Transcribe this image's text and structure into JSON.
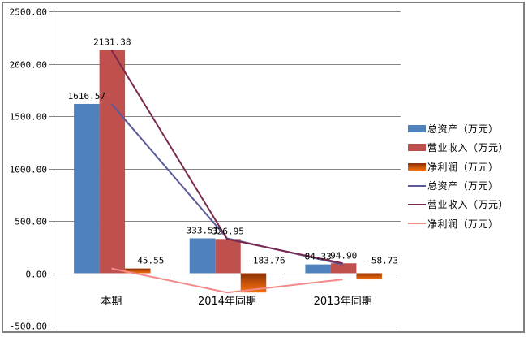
{
  "chart_data": {
    "type": "bar+line",
    "title": "",
    "xlabel": "",
    "ylabel": "",
    "ylim": [
      -500,
      2500
    ],
    "y_ticks": [
      "2500.00",
      "2000.00",
      "1500.00",
      "1000.00",
      "500.00",
      "0.00",
      "-500.00"
    ],
    "grid": true,
    "legend_position": "right",
    "categories": [
      "本期",
      "2014年同期",
      "2013年同期"
    ],
    "series": [
      {
        "name": "总资产（万元）",
        "kind": "bar",
        "color": "#4f81bd",
        "values": [
          1616.57,
          333.51,
          84.33
        ]
      },
      {
        "name": "营业收入（万元）",
        "kind": "bar",
        "color": "#c0504d",
        "values": [
          2131.38,
          326.95,
          94.9
        ]
      },
      {
        "name": "净利润（万元）",
        "kind": "bar",
        "color": "#e36c09",
        "values": [
          45.55,
          -183.76,
          -58.73
        ]
      },
      {
        "name": "总资产（万元）",
        "kind": "line",
        "color": "#5a5a9a",
        "values": [
          1616.57,
          333.51,
          84.33
        ]
      },
      {
        "name": "营业收入（万元）",
        "kind": "line",
        "color": "#7a2a4e",
        "values": [
          2131.38,
          326.95,
          94.9
        ]
      },
      {
        "name": "净利润（万元）",
        "kind": "line",
        "color": "#f28a8a",
        "values": [
          45.55,
          -183.76,
          -58.73
        ]
      }
    ],
    "data_labels": [
      [
        "1616.57",
        "2131.38",
        "45.55"
      ],
      [
        "333.51",
        "326.95",
        "-183.76"
      ],
      [
        "84.33",
        "94.90",
        "-58.73"
      ]
    ]
  },
  "legend": {
    "items": [
      {
        "label": "总资产（万元）"
      },
      {
        "label": "营业收入（万元）"
      },
      {
        "label": "净利润（万元）"
      },
      {
        "label": "总资产（万元）"
      },
      {
        "label": "营业收入（万元）"
      },
      {
        "label": "净利润（万元）"
      }
    ]
  }
}
